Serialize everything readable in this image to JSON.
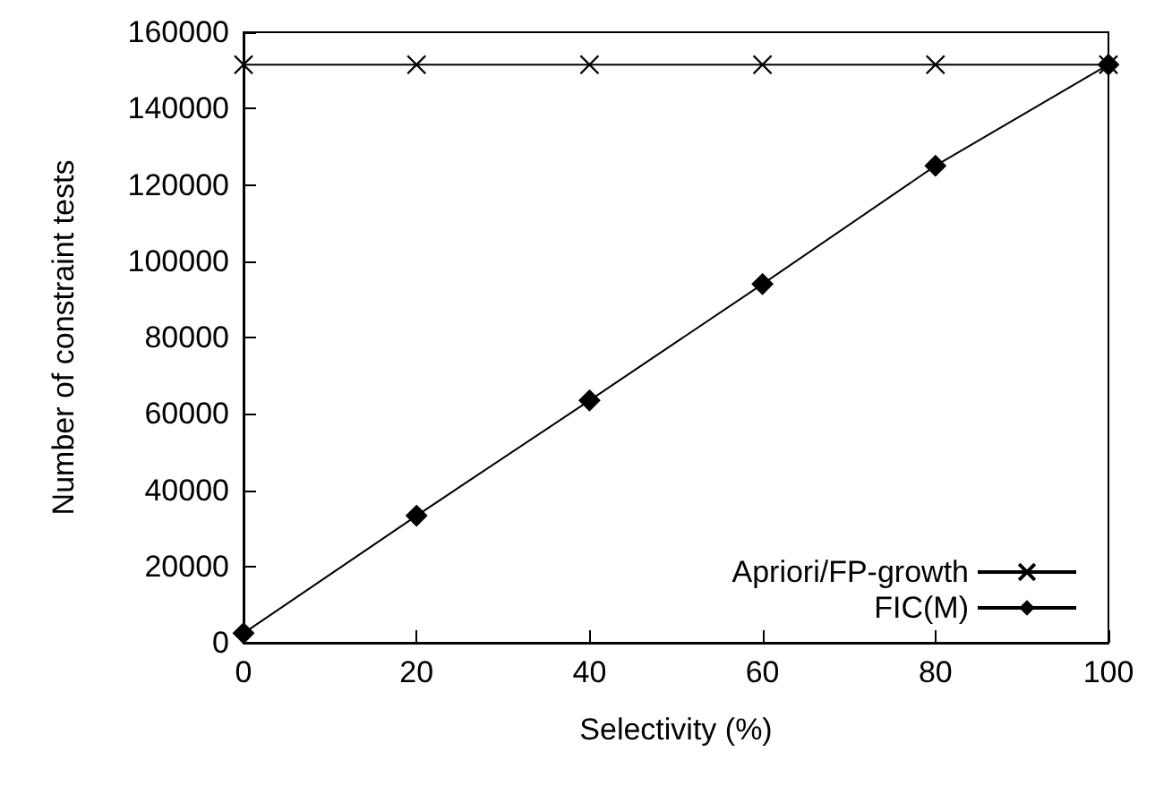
{
  "chart_data": {
    "type": "line",
    "xlabel": "Selectivity (%)",
    "ylabel": "Number of constraint tests",
    "x": [
      0,
      20,
      40,
      60,
      80,
      100
    ],
    "series": [
      {
        "name": "Apriori/FP-growth",
        "color": "#000000",
        "marker": "cross",
        "values": [
          151500,
          151500,
          151500,
          151500,
          151500,
          151500
        ]
      },
      {
        "name": "FIC(M)",
        "color": "#000000",
        "marker": "diamond",
        "values": [
          2500,
          33300,
          63500,
          94000,
          125000,
          151500
        ]
      }
    ],
    "xlim": [
      0,
      100
    ],
    "xticks": [
      0,
      20,
      40,
      60,
      80,
      100
    ],
    "ylim": [
      0,
      160000
    ],
    "yticks": [
      0,
      20000,
      40000,
      60000,
      80000,
      100000,
      120000,
      140000,
      160000
    ],
    "grid": false,
    "legend": "bottom right",
    "line_style": "solid"
  }
}
